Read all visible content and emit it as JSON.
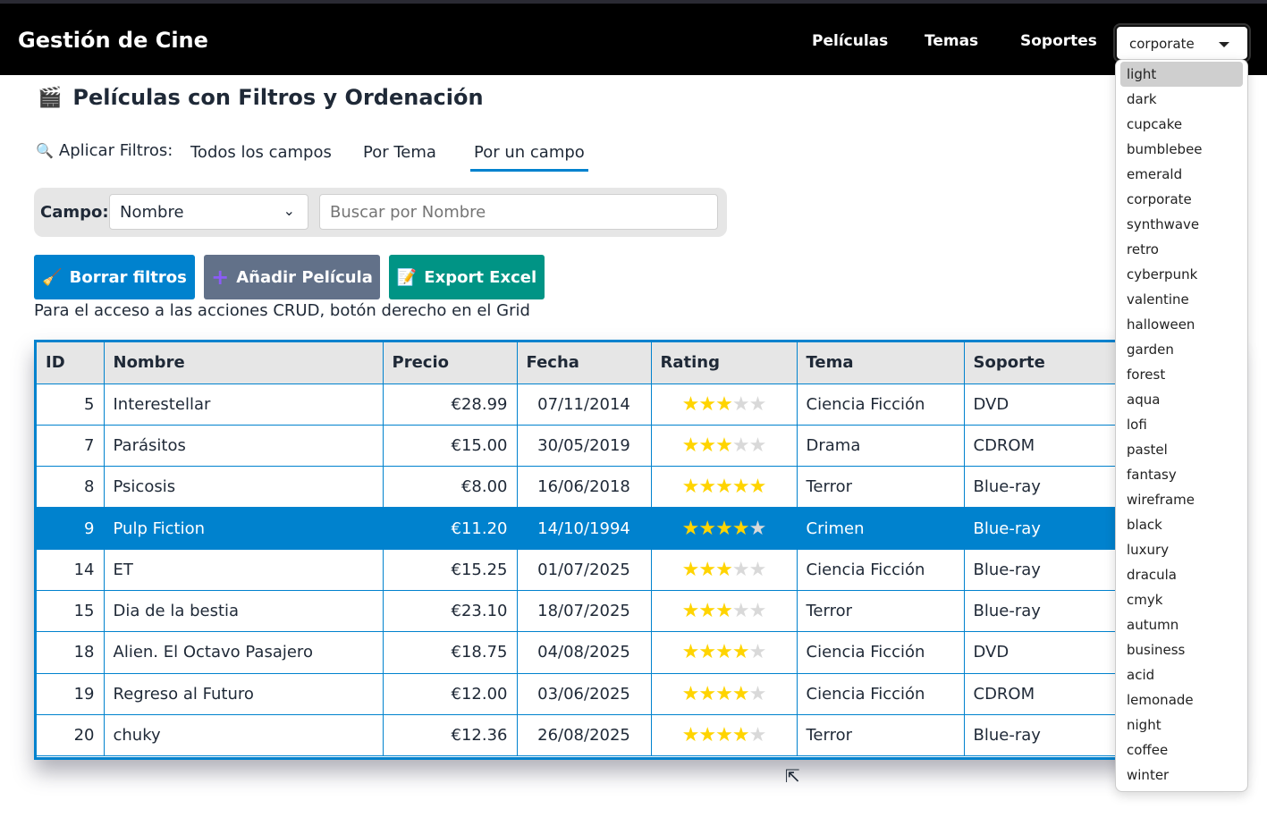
{
  "app": {
    "title": "Gestión de Cine",
    "nav": [
      "Películas",
      "Temas",
      "Soportes"
    ],
    "theme_selected": "corporate",
    "theme_options": [
      "light",
      "dark",
      "cupcake",
      "bumblebee",
      "emerald",
      "corporate",
      "synthwave",
      "retro",
      "cyberpunk",
      "valentine",
      "halloween",
      "garden",
      "forest",
      "aqua",
      "lofi",
      "pastel",
      "fantasy",
      "wireframe",
      "black",
      "luxury",
      "dracula",
      "cmyk",
      "autumn",
      "business",
      "acid",
      "lemonade",
      "night",
      "coffee",
      "winter"
    ]
  },
  "page": {
    "title": "Películas con Filtros y Ordenación",
    "filters_label": "Aplicar Filtros:",
    "tabs": [
      "Todos los campos",
      "Por Tema",
      "Por un campo"
    ],
    "active_tab": "Por un campo",
    "campo_label": "Campo:",
    "campo_value": "Nombre",
    "search_value": "Buscar por Nombre",
    "buttons": {
      "clear": "Borrar filtros",
      "add": "Añadir Película",
      "export": "Export Excel"
    },
    "note": "Para el acceso a las acciones CRUD, botón derecho en el Grid"
  },
  "grid": {
    "columns": [
      "ID",
      "Nombre",
      "Precio",
      "Fecha",
      "Rating",
      "Tema",
      "Soporte"
    ],
    "rows": [
      {
        "id": "5",
        "nombre": "Interestellar",
        "precio": "€28.99",
        "fecha": "07/11/2014",
        "rating": 3,
        "tema": "Ciencia Ficción",
        "soporte": "DVD"
      },
      {
        "id": "7",
        "nombre": "Parásitos",
        "precio": "€15.00",
        "fecha": "30/05/2019",
        "rating": 3,
        "tema": "Drama",
        "soporte": "CDROM"
      },
      {
        "id": "8",
        "nombre": "Psicosis",
        "precio": "€8.00",
        "fecha": "16/06/2018",
        "rating": 5,
        "tema": "Terror",
        "soporte": "Blue-ray"
      },
      {
        "id": "9",
        "nombre": "Pulp Fiction",
        "precio": "€11.20",
        "fecha": "14/10/1994",
        "rating": 4,
        "tema": "Crimen",
        "soporte": "Blue-ray",
        "selected": true
      },
      {
        "id": "14",
        "nombre": "ET",
        "precio": "€15.25",
        "fecha": "01/07/2025",
        "rating": 3,
        "tema": "Ciencia Ficción",
        "soporte": "Blue-ray"
      },
      {
        "id": "15",
        "nombre": "Dia de la bestia",
        "precio": "€23.10",
        "fecha": "18/07/2025",
        "rating": 3,
        "tema": "Terror",
        "soporte": "Blue-ray"
      },
      {
        "id": "18",
        "nombre": "Alien. El Octavo Pasajero",
        "precio": "€18.75",
        "fecha": "04/08/2025",
        "rating": 4,
        "tema": "Ciencia Ficción",
        "soporte": "DVD"
      },
      {
        "id": "19",
        "nombre": "Regreso al Futuro",
        "precio": "€12.00",
        "fecha": "03/06/2025",
        "rating": 4,
        "tema": "Ciencia Ficción",
        "soporte": "CDROM"
      },
      {
        "id": "20",
        "nombre": "chuky",
        "precio": "€12.36",
        "fecha": "26/08/2025",
        "rating": 4,
        "tema": "Terror",
        "soporte": "Blue-ray"
      }
    ]
  },
  "colors": {
    "accent": "#0082ce",
    "neutral": "#627189",
    "success": "#009485",
    "star": "#ffd400"
  }
}
